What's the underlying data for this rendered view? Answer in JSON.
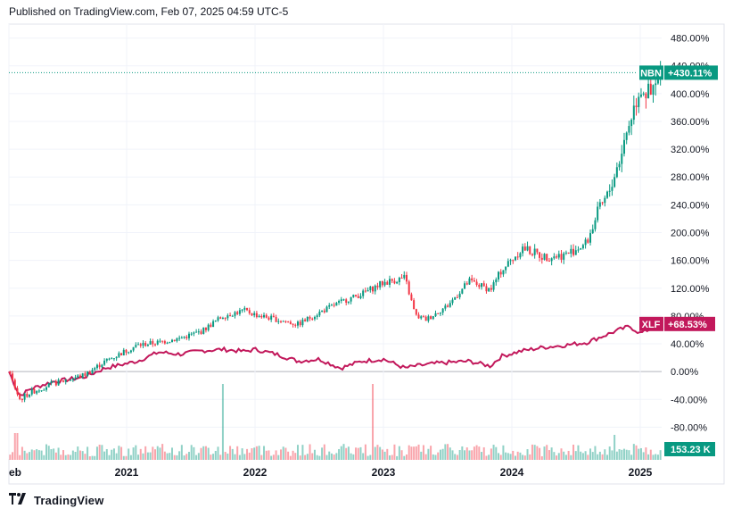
{
  "header": {
    "published": "Published on TradingView.com, Feb 07, 2025 04:59 UTC-5"
  },
  "footer": {
    "brand": "TradingView",
    "logo_icon": "tradingview-logo-icon"
  },
  "colors": {
    "up": "#089981",
    "down": "#f23645",
    "xlf": "#c2185b",
    "grid": "#f0f3fa",
    "zero": "#b2b5be"
  },
  "chart_data": {
    "type": "candlestick",
    "y_axis": {
      "unit": "%",
      "ylim": [
        -100,
        500
      ],
      "tick_labels": [
        "480.00%",
        "440.00%",
        "400.00%",
        "360.00%",
        "320.00%",
        "280.00%",
        "240.00%",
        "200.00%",
        "160.00%",
        "120.00%",
        "80.00%",
        "40.00%",
        "0.00%",
        "-40.00%",
        "-80.00%"
      ],
      "tick_values": [
        480,
        440,
        400,
        360,
        320,
        280,
        240,
        200,
        160,
        120,
        80,
        40,
        0,
        -40,
        -80
      ]
    },
    "x_axis": {
      "tick_labels": [
        "eb",
        "2021",
        "2022",
        "2023",
        "2024",
        "2025"
      ],
      "tick_dates": [
        "2020-02",
        "2021-01",
        "2022-01",
        "2023-01",
        "2024-01",
        "2025-01"
      ],
      "xlim": [
        "2020-02",
        "2025-03"
      ]
    },
    "grid": true,
    "series": [
      {
        "name": "NBN",
        "last_label": "+430.11%",
        "last_value": 430.11,
        "points": [
          [
            "2020-02",
            0
          ],
          [
            "2020-03",
            -40
          ],
          [
            "2020-04",
            -30
          ],
          [
            "2020-06",
            -18
          ],
          [
            "2020-09",
            -5
          ],
          [
            "2020-11",
            15
          ],
          [
            "2021-02",
            38
          ],
          [
            "2021-04",
            42
          ],
          [
            "2021-06",
            48
          ],
          [
            "2021-08",
            58
          ],
          [
            "2021-10",
            80
          ],
          [
            "2021-12",
            88
          ],
          [
            "2022-01",
            82
          ],
          [
            "2022-03",
            75
          ],
          [
            "2022-05",
            68
          ],
          [
            "2022-07",
            85
          ],
          [
            "2022-09",
            100
          ],
          [
            "2022-11",
            112
          ],
          [
            "2023-01",
            128
          ],
          [
            "2023-03",
            135
          ],
          [
            "2023-04",
            80
          ],
          [
            "2023-05",
            75
          ],
          [
            "2023-07",
            95
          ],
          [
            "2023-09",
            130
          ],
          [
            "2023-11",
            118
          ],
          [
            "2023-12",
            145
          ],
          [
            "2024-02",
            178
          ],
          [
            "2024-04",
            165
          ],
          [
            "2024-06",
            168
          ],
          [
            "2024-08",
            185
          ],
          [
            "2024-09",
            228
          ],
          [
            "2024-10",
            255
          ],
          [
            "2024-11",
            302
          ],
          [
            "2024-12",
            360
          ],
          [
            "2025-01",
            410
          ],
          [
            "2025-02",
            395
          ],
          [
            "2025-03",
            430.11
          ]
        ]
      },
      {
        "name": "XLF",
        "last_label": "+68.53%",
        "last_value": 68.53,
        "points": [
          [
            "2020-02",
            0
          ],
          [
            "2020-03",
            -35
          ],
          [
            "2020-04",
            -25
          ],
          [
            "2020-06",
            -15
          ],
          [
            "2020-09",
            -8
          ],
          [
            "2020-11",
            5
          ],
          [
            "2021-02",
            15
          ],
          [
            "2021-04",
            28
          ],
          [
            "2021-06",
            25
          ],
          [
            "2021-08",
            30
          ],
          [
            "2021-10",
            32
          ],
          [
            "2021-12",
            29
          ],
          [
            "2022-01",
            32
          ],
          [
            "2022-03",
            25
          ],
          [
            "2022-05",
            15
          ],
          [
            "2022-07",
            18
          ],
          [
            "2022-09",
            5
          ],
          [
            "2022-11",
            15
          ],
          [
            "2023-01",
            18
          ],
          [
            "2023-03",
            5
          ],
          [
            "2023-04",
            8
          ],
          [
            "2023-06",
            12
          ],
          [
            "2023-09",
            15
          ],
          [
            "2023-11",
            8
          ],
          [
            "2023-12",
            22
          ],
          [
            "2024-02",
            30
          ],
          [
            "2024-04",
            35
          ],
          [
            "2024-06",
            38
          ],
          [
            "2024-08",
            42
          ],
          [
            "2024-09",
            48
          ],
          [
            "2024-11",
            60
          ],
          [
            "2024-12",
            65
          ],
          [
            "2025-01",
            55
          ],
          [
            "2025-02",
            62
          ],
          [
            "2025-03",
            68.53
          ]
        ]
      }
    ],
    "volume": {
      "last_label": "153.23 K"
    }
  }
}
